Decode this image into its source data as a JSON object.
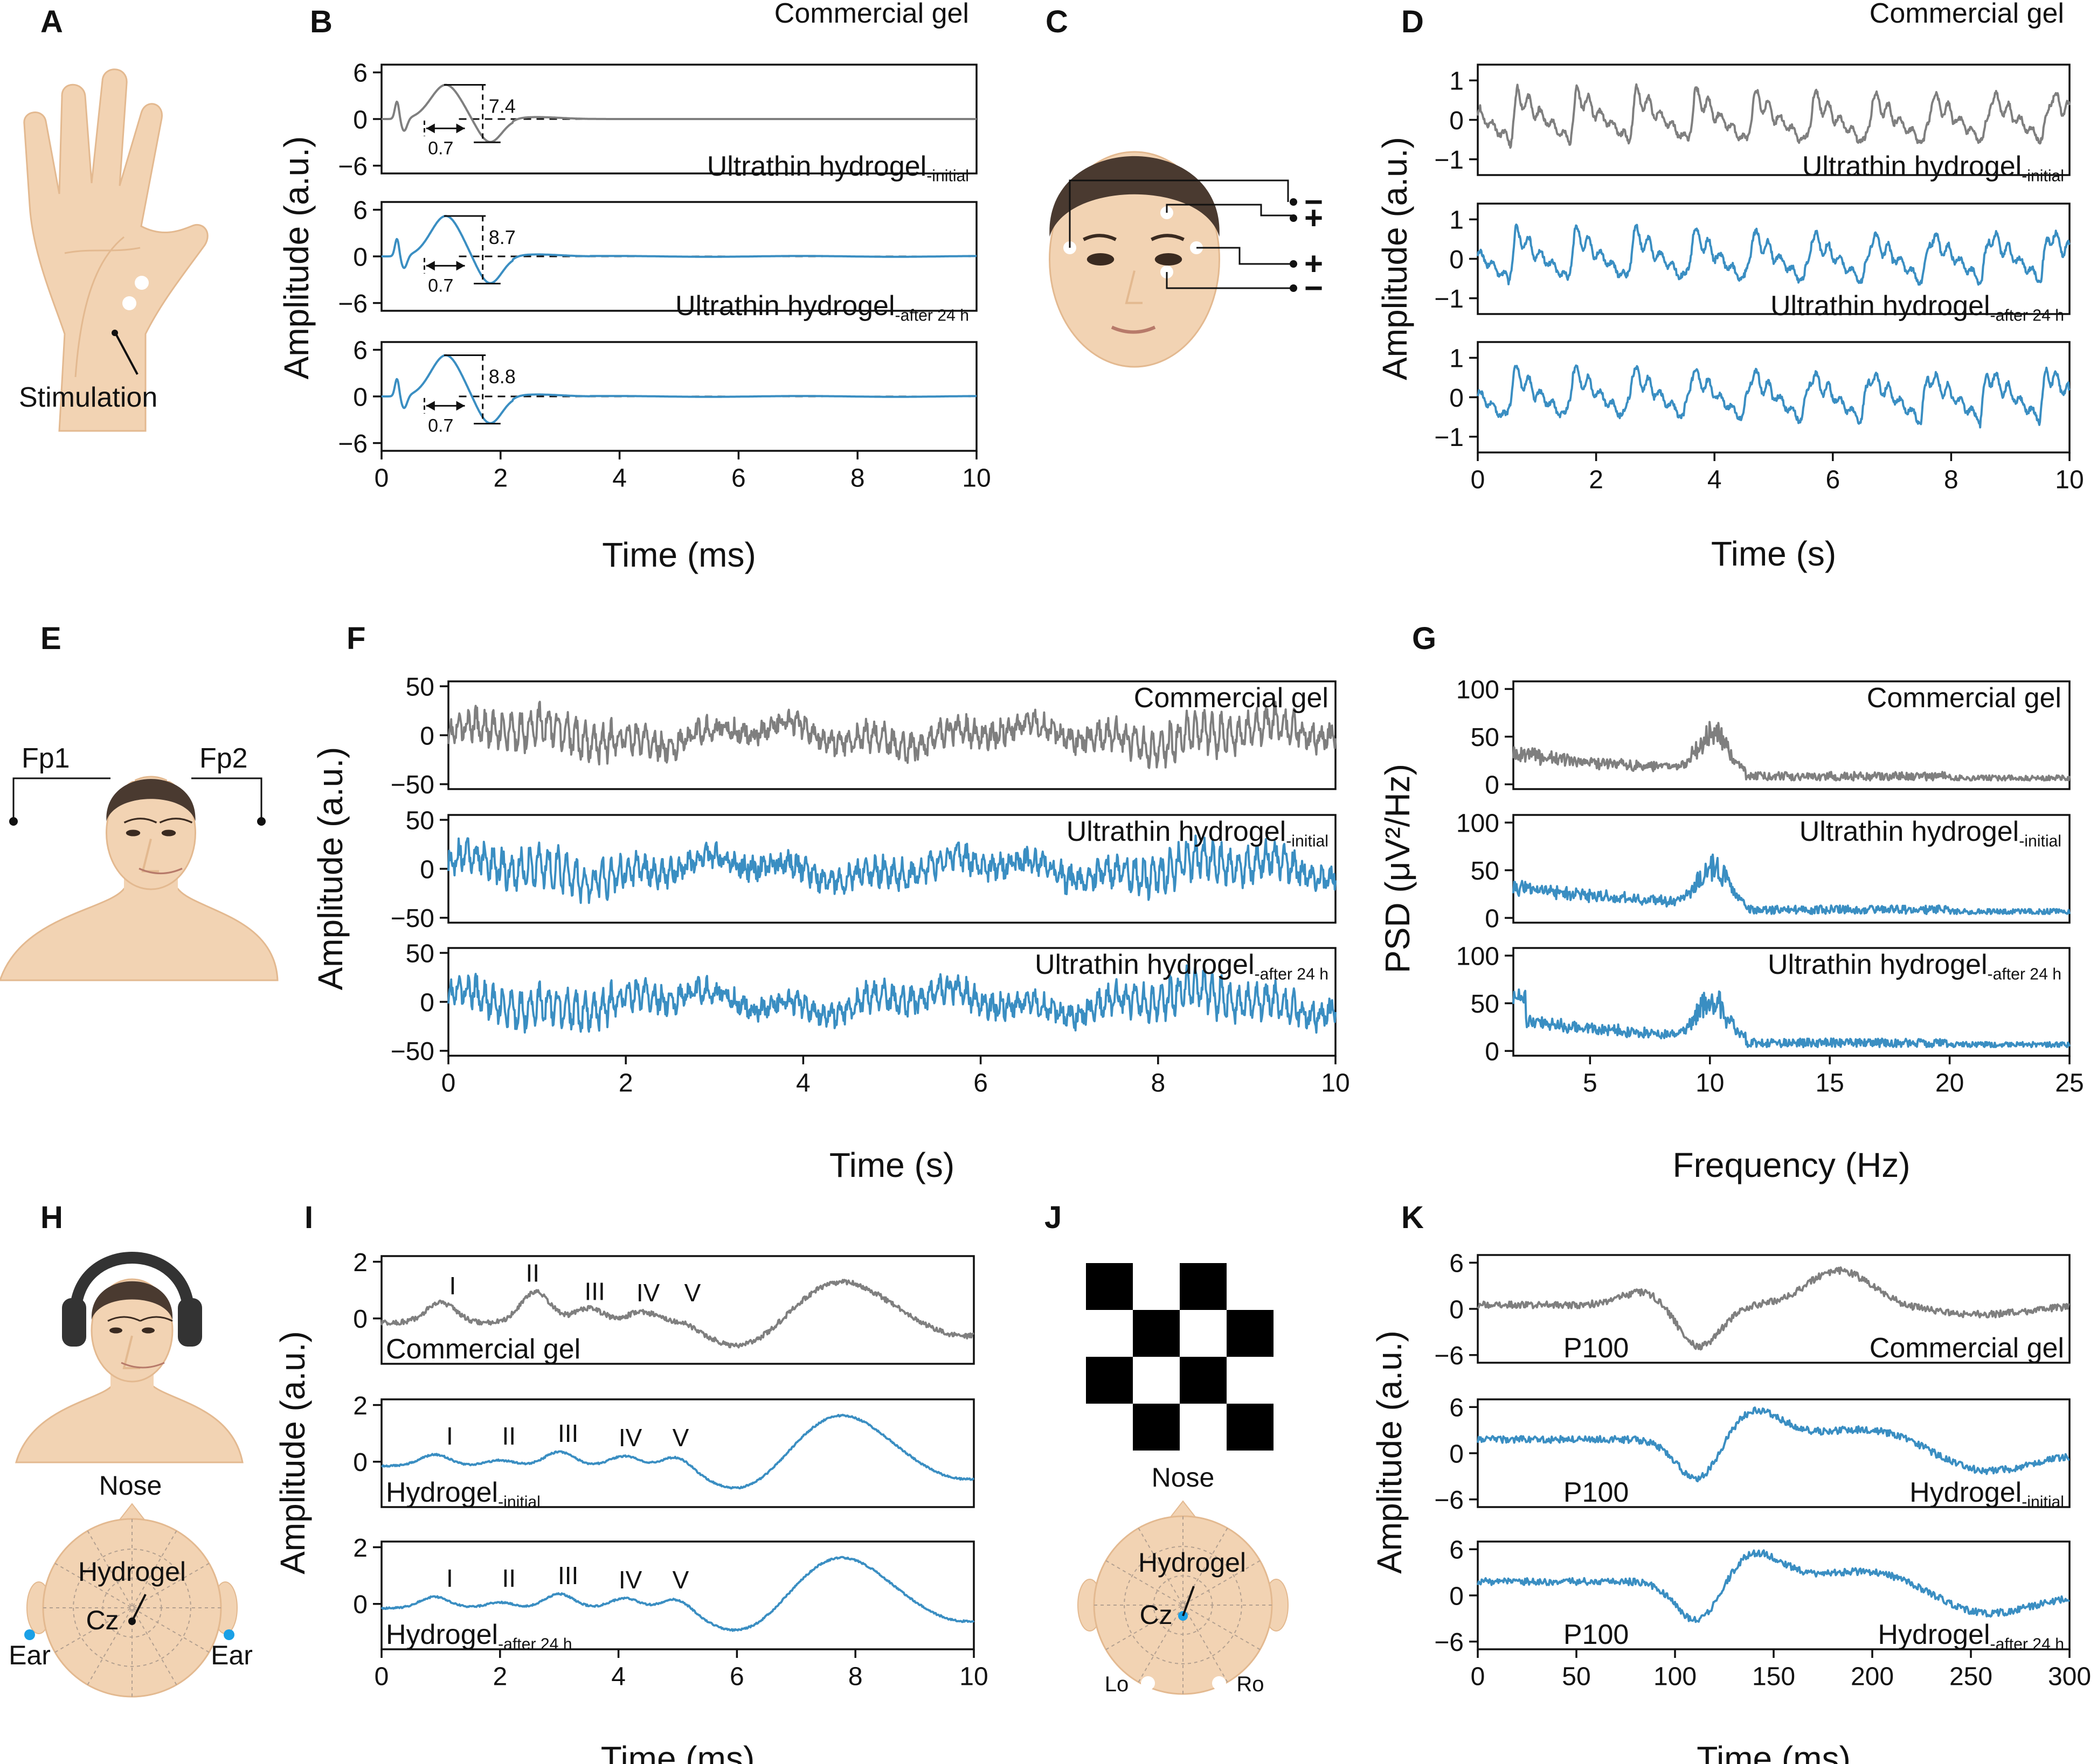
{
  "colors": {
    "gray": "#7f7f7f",
    "blue": "#3a8ec2",
    "skin": "#f2d3b3",
    "skin_dark": "#e3b990",
    "hair": "#4a3a30",
    "electrode_blue": "#1aa0e6"
  },
  "panels": [
    {
      "id": "A",
      "label": "A",
      "illustration": "hand-wrist",
      "annotations": [
        "Stimulation"
      ]
    },
    {
      "id": "B",
      "label": "B",
      "xlabel": "Time (ms)",
      "ylabel": "Amplitude (a.u.)",
      "xlim": [
        0,
        10
      ],
      "ylim": [
        -7,
        7
      ],
      "xticks": [
        0,
        2,
        4,
        6,
        8,
        10
      ],
      "yticks": [
        6,
        0,
        -6
      ],
      "subplots": [
        {
          "name": "Commercial gel",
          "name_sub": "",
          "color": "gray",
          "peak": 4.4,
          "trough": -3.0,
          "amp_label": "7.4",
          "lat_label": "0.7"
        },
        {
          "name": "Ultrathin hydrogel",
          "name_sub": "-initial",
          "color": "blue",
          "peak": 5.2,
          "trough": -3.5,
          "amp_label": "8.7",
          "lat_label": "0.7"
        },
        {
          "name": "Ultrathin hydrogel",
          "name_sub": "-after 24 h",
          "color": "blue",
          "peak": 5.3,
          "trough": -3.5,
          "amp_label": "8.8",
          "lat_label": "0.7"
        }
      ]
    },
    {
      "id": "C",
      "label": "C",
      "illustration": "face-eog",
      "annotations": [
        "−",
        "+",
        "+",
        "−"
      ]
    },
    {
      "id": "D",
      "label": "D",
      "xlabel": "Time (s)",
      "ylabel": "Amplitude (a.u.)",
      "xlim": [
        0,
        10
      ],
      "ylim": [
        -1.4,
        1.4
      ],
      "xticks": [
        0,
        2,
        4,
        6,
        8,
        10
      ],
      "yticks": [
        1,
        0,
        -1
      ],
      "subplots": [
        {
          "name": "Commercial gel",
          "name_sub": "",
          "color": "gray"
        },
        {
          "name": "Ultrathin hydrogel",
          "name_sub": "-initial",
          "color": "blue"
        },
        {
          "name": "Ultrathin hydrogel",
          "name_sub": "-after 24 h",
          "color": "blue"
        }
      ]
    },
    {
      "id": "E",
      "label": "E",
      "illustration": "head-eeg",
      "annotations": [
        "Fp1",
        "Fp2"
      ]
    },
    {
      "id": "F",
      "label": "F",
      "xlabel": "Time (s)",
      "ylabel": "Amplitude (a.u.)",
      "xlim": [
        0,
        10
      ],
      "ylim": [
        -55,
        55
      ],
      "xticks": [
        0,
        2,
        4,
        6,
        8,
        10
      ],
      "yticks": [
        50,
        0,
        -50
      ],
      "subplots": [
        {
          "name": "Commercial gel",
          "name_sub": "",
          "color": "gray"
        },
        {
          "name": "Ultrathin hydrogel",
          "name_sub": "-initial",
          "color": "blue"
        },
        {
          "name": "Ultrathin hydrogel",
          "name_sub": "-after 24 h",
          "color": "blue"
        }
      ]
    },
    {
      "id": "G",
      "label": "G",
      "xlabel": "Frequency (Hz)",
      "ylabel": "PSD (μV²/Hz)",
      "xlim": [
        1.8,
        25
      ],
      "ylim": [
        -5,
        108
      ],
      "xticks": [
        5,
        10,
        15,
        20,
        25
      ],
      "yticks": [
        100,
        50,
        0
      ],
      "subplots": [
        {
          "name": "Commercial gel",
          "name_sub": "",
          "color": "gray"
        },
        {
          "name": "Ultrathin hydrogel",
          "name_sub": "-initial",
          "color": "blue"
        },
        {
          "name": "Ultrathin hydrogel",
          "name_sub": "-after 24 h",
          "color": "blue"
        }
      ]
    },
    {
      "id": "H",
      "label": "H",
      "illustration": "head-headphones-scalp",
      "annotations": [
        "Nose",
        "Hydrogel",
        "Cz",
        "Ear",
        "Ear"
      ]
    },
    {
      "id": "I",
      "label": "I",
      "xlabel": "Time (ms)",
      "ylabel": "Amplitude (a.u.)",
      "xlim": [
        0,
        10
      ],
      "ylim": [
        -1.6,
        2.2
      ],
      "xticks": [
        0,
        2,
        4,
        6,
        8,
        10
      ],
      "yticks": [
        2,
        0
      ],
      "wave_labels": [
        "I",
        "II",
        "III",
        "IV",
        "V"
      ],
      "subplots": [
        {
          "name": "Commercial gel",
          "name_sub": "",
          "color": "gray"
        },
        {
          "name": "Hydrogel",
          "name_sub": "-initial",
          "color": "blue"
        },
        {
          "name": "Hydrogel",
          "name_sub": "-after 24 h",
          "color": "blue"
        }
      ]
    },
    {
      "id": "J",
      "label": "J",
      "illustration": "checkerboard-scalp",
      "annotations": [
        "Nose",
        "Hydrogel",
        "Cz",
        "Lo",
        "Ro"
      ]
    },
    {
      "id": "K",
      "label": "K",
      "xlabel": "Time (ms)",
      "ylabel": "Amplitude (a.u.)",
      "xlim": [
        0,
        300
      ],
      "ylim": [
        -7,
        7
      ],
      "xticks": [
        0,
        50,
        100,
        150,
        200,
        250,
        300
      ],
      "yticks": [
        6,
        0,
        -6
      ],
      "peak_label": "P100",
      "subplots": [
        {
          "name": "Commercial gel",
          "name_sub": "",
          "color": "gray"
        },
        {
          "name": "Hydrogel",
          "name_sub": "-initial",
          "color": "blue"
        },
        {
          "name": "Hydrogel",
          "name_sub": "-after 24 h",
          "color": "blue"
        }
      ]
    }
  ]
}
